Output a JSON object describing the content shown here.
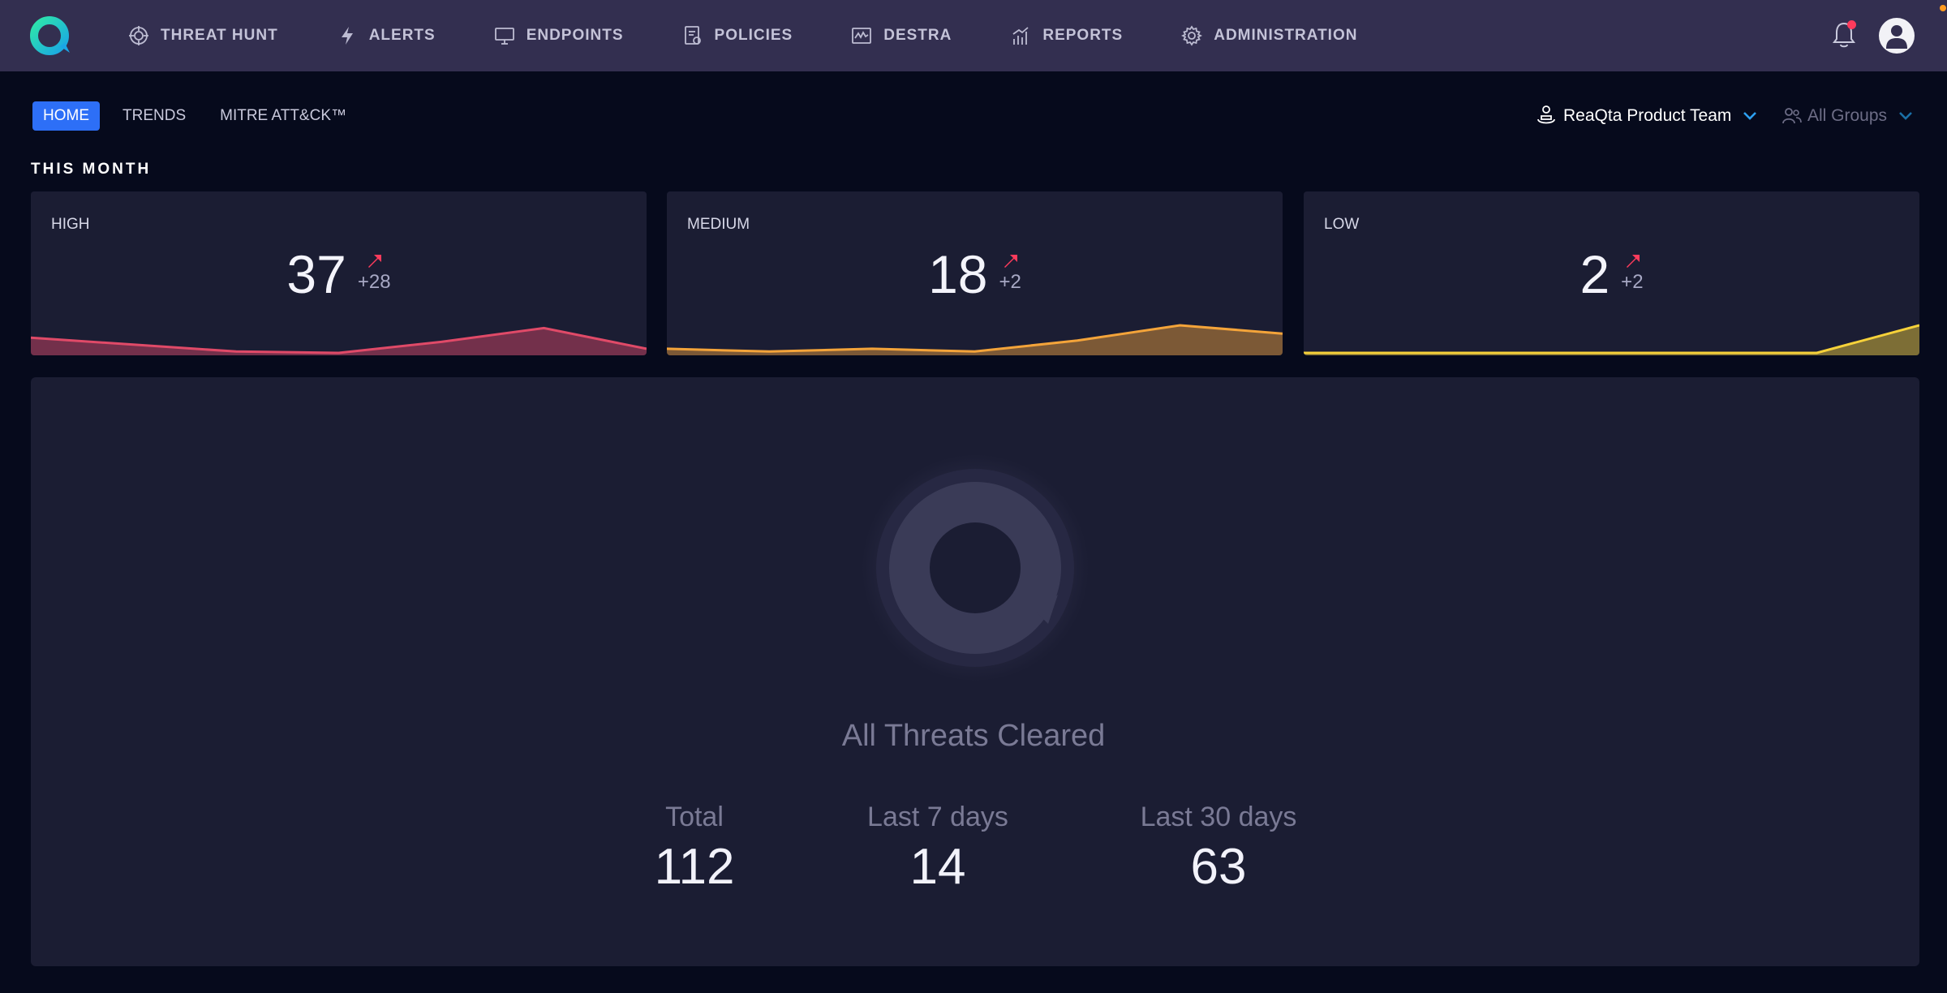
{
  "nav": {
    "items": [
      {
        "label": "THREAT HUNT",
        "icon": "crosshair-icon"
      },
      {
        "label": "ALERTS",
        "icon": "lightning-icon"
      },
      {
        "label": "ENDPOINTS",
        "icon": "monitor-icon"
      },
      {
        "label": "POLICIES",
        "icon": "policy-document-icon"
      },
      {
        "label": "DESTRA",
        "icon": "destra-chart-icon"
      },
      {
        "label": "REPORTS",
        "icon": "bar-chart-icon"
      },
      {
        "label": "ADMINISTRATION",
        "icon": "gear-icon"
      }
    ],
    "notification_dot_color": "#ff3b5c"
  },
  "subtabs": {
    "items": [
      "HOME",
      "TRENDS",
      "MITRE ATT&CK™"
    ],
    "active": "HOME"
  },
  "team_selector": {
    "label": "ReaQta Product Team"
  },
  "groups_selector": {
    "label": "All Groups"
  },
  "section_title": "THIS MONTH",
  "cards": [
    {
      "label": "HIGH",
      "value": "37",
      "delta": "+28",
      "color": "#e04a68",
      "trend": [
        0.55,
        0.3,
        0.05,
        0.0,
        0.4,
        0.9,
        0.15
      ]
    },
    {
      "label": "MEDIUM",
      "value": "18",
      "delta": "+2",
      "color": "#f4a43a",
      "trend": [
        0.15,
        0.05,
        0.15,
        0.05,
        0.45,
        1.0,
        0.7
      ]
    },
    {
      "label": "LOW",
      "value": "2",
      "delta": "+2",
      "color": "#f7d23a",
      "trend": [
        0.0,
        0.0,
        0.0,
        0.0,
        0.0,
        0.0,
        1.0
      ]
    }
  ],
  "delta_arrow_color": "#ff3b5c",
  "summary": {
    "title": "All Threats Cleared",
    "stats": [
      {
        "label": "Total",
        "value": "112"
      },
      {
        "label": "Last 7 days",
        "value": "14"
      },
      {
        "label": "Last 30 days",
        "value": "63"
      }
    ]
  }
}
